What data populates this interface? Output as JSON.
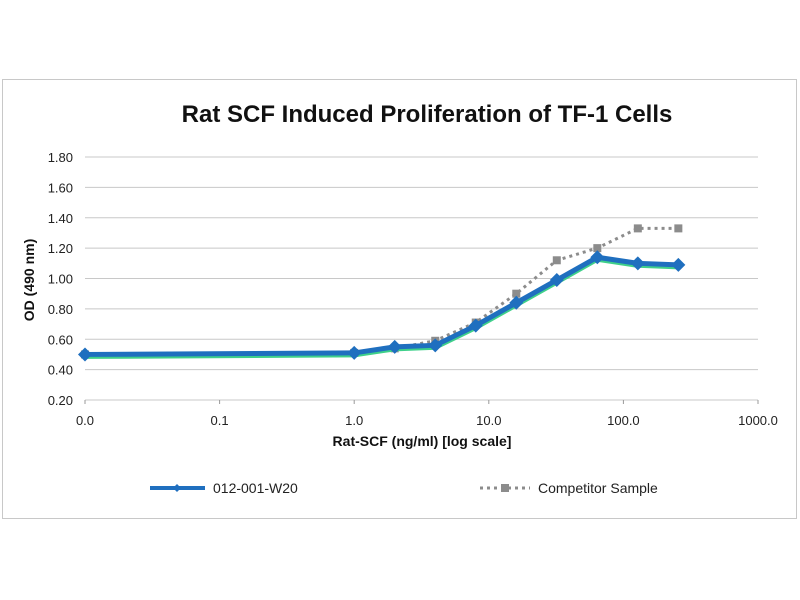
{
  "chart_data": {
    "type": "line",
    "title": "Rat SCF Induced Proliferation of TF-1 Cells",
    "xlabel": "Rat-SCF (ng/ml) [log scale]",
    "ylabel": "OD (490 nm)",
    "xscale": "log",
    "xlim": [
      0.01,
      1000
    ],
    "ylim": [
      0.2,
      1.8
    ],
    "xticks": [
      0.01,
      0.1,
      1,
      10,
      100,
      1000
    ],
    "xtick_labels": [
      "0.0",
      "0.1",
      "1.0",
      "10.0",
      "100.0",
      "1000.0"
    ],
    "yticks": [
      "0.20",
      "0.40",
      "0.60",
      "0.80",
      "1.00",
      "1.20",
      "1.40",
      "1.60",
      "1.80"
    ],
    "grid": "horizontal",
    "legend": "bottom",
    "x": [
      0.01,
      1,
      2,
      4,
      8,
      16,
      32,
      64,
      128,
      256
    ],
    "series": [
      {
        "name": "012-001-W20",
        "color": "#1f6fbf",
        "style": "solid-diamond",
        "values": [
          0.5,
          0.51,
          0.55,
          0.56,
          0.69,
          0.84,
          0.99,
          1.14,
          1.1,
          1.09
        ]
      },
      {
        "name": "Competitor Sample",
        "color": "#8c8c8c",
        "style": "dotted-square",
        "values": [
          0.5,
          0.51,
          0.54,
          0.59,
          0.71,
          0.9,
          1.12,
          1.2,
          1.33,
          1.33
        ]
      }
    ]
  }
}
